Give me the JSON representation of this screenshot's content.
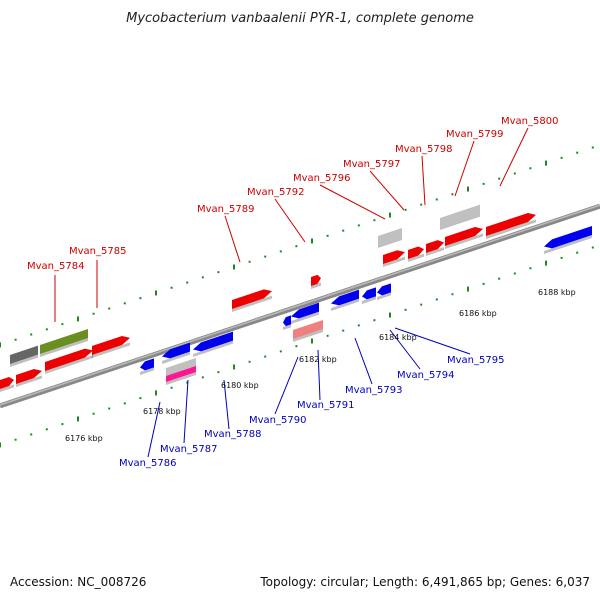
{
  "title": "Mycobacterium vanbaalenii PYR-1, complete genome",
  "footer": {
    "accession": "Accession: NC_008726",
    "topology": "Topology: circular; Length: 6,491,865 bp; Genes: 6,037"
  },
  "colors": {
    "forward": "#ee0000",
    "reverse": "#0000ee",
    "grey": "#c0c0c0",
    "darkgrey": "#666666",
    "olive": "#6b8e23",
    "pink": "#ff1493",
    "salmon": "#f08080",
    "backbone": "#888888",
    "tick": "#1a8a1a",
    "label_forward": "#cc0000",
    "label_reverse": "#0000bb"
  },
  "ticks": [
    {
      "label": "6176 kbp"
    },
    {
      "label": "6178 kbp"
    },
    {
      "label": "6180 kbp"
    },
    {
      "label": "6182 kbp"
    },
    {
      "label": "6184 kbp"
    },
    {
      "label": "6186 kbp"
    },
    {
      "label": "6188 kbp"
    }
  ],
  "forward_labels": [
    {
      "text": "Mvan_5784"
    },
    {
      "text": "Mvan_5785"
    },
    {
      "text": "Mvan_5789"
    },
    {
      "text": "Mvan_5792"
    },
    {
      "text": "Mvan_5796"
    },
    {
      "text": "Mvan_5797"
    },
    {
      "text": "Mvan_5798"
    },
    {
      "text": "Mvan_5799"
    },
    {
      "text": "Mvan_5800"
    }
  ],
  "reverse_labels": [
    {
      "text": "Mvan_5786"
    },
    {
      "text": "Mvan_5787"
    },
    {
      "text": "Mvan_5788"
    },
    {
      "text": "Mvan_5790"
    },
    {
      "text": "Mvan_5791"
    },
    {
      "text": "Mvan_5793"
    },
    {
      "text": "Mvan_5794"
    },
    {
      "text": "Mvan_5795"
    }
  ]
}
